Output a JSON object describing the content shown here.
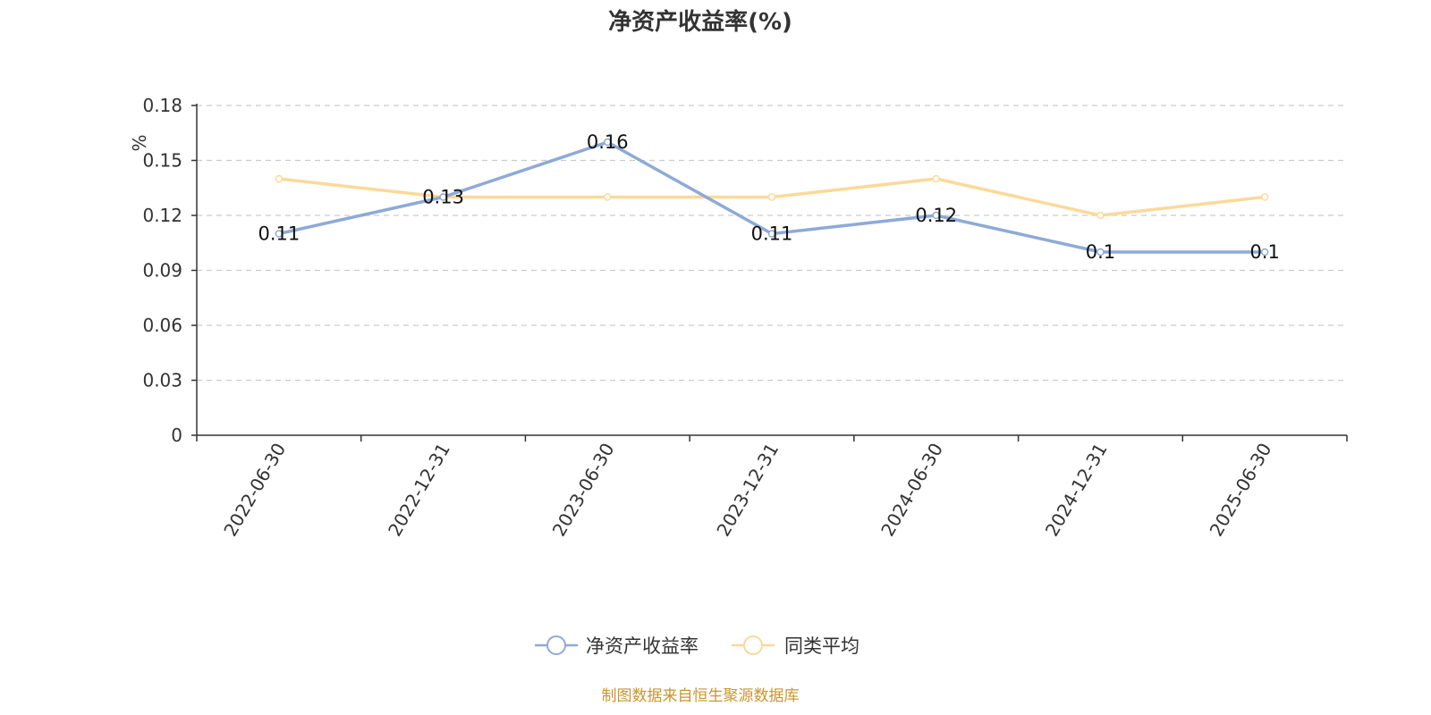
{
  "title": "净资产收益率(%)",
  "source_note": "制图数据来自恒生聚源数据库",
  "chart_data": {
    "type": "line",
    "title": "净资产收益率(%)",
    "ylabel": "%",
    "xlabel": "",
    "categories": [
      "2022-06-30",
      "2022-12-31",
      "2023-06-30",
      "2023-12-31",
      "2024-06-30",
      "2024-12-31",
      "2025-06-30"
    ],
    "ylim": [
      0,
      0.18
    ],
    "yticks": [
      "0",
      "0.03",
      "0.06",
      "0.09",
      "0.12",
      "0.15",
      "0.18"
    ],
    "grid": true,
    "legend_position": "bottom-center",
    "series": [
      {
        "name": "净资产收益率",
        "values": [
          0.11,
          0.13,
          0.16,
          0.11,
          0.12,
          0.1,
          0.1
        ],
        "labels": [
          "0.11",
          "0.13",
          "0.16",
          "0.11",
          "0.12",
          "0.1",
          "0.1"
        ],
        "color": "#8eaad6"
      },
      {
        "name": "同类平均",
        "values": [
          0.14,
          0.13,
          0.13,
          0.13,
          0.14,
          0.12,
          0.13
        ],
        "color": "#fbd99a"
      }
    ],
    "ylabel_color": "#e02020"
  }
}
